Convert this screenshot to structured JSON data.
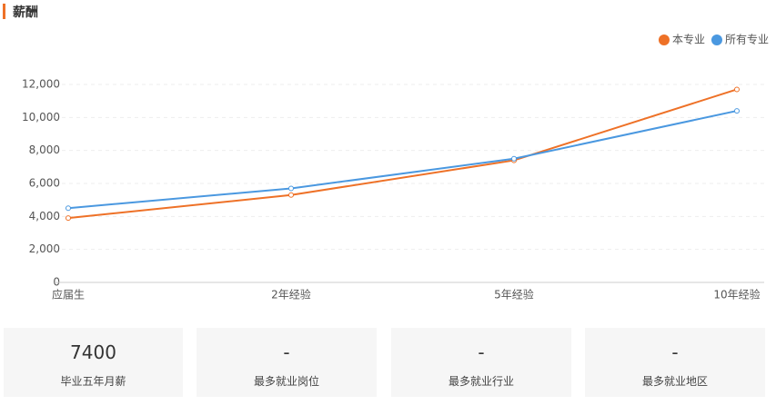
{
  "header": {
    "title": "薪酬"
  },
  "chart_data": {
    "type": "line",
    "categories": [
      "应届生",
      "2年经验",
      "5年经验",
      "10年经验"
    ],
    "series": [
      {
        "name": "本专业",
        "color": "#ee7127",
        "values": [
          3900,
          5300,
          7400,
          11700
        ]
      },
      {
        "name": "所有专业",
        "color": "#4a98e0",
        "values": [
          4500,
          5700,
          7500,
          10400
        ]
      }
    ],
    "ylim": [
      0,
      12000
    ],
    "yticks": [
      0,
      {
        "value": 2000,
        "label": "2,000"
      },
      {
        "value": 4000,
        "label": "4,000"
      },
      {
        "value": 6000,
        "label": "6,000"
      },
      {
        "value": 8000,
        "label": "8,000"
      },
      {
        "value": 10000,
        "label": "10,000"
      },
      {
        "value": 12000,
        "label": "12,000"
      }
    ],
    "grid": true,
    "legend": "top-right"
  },
  "cards": [
    {
      "value": 7400,
      "label": "毕业五年月薪"
    },
    {
      "value": "-",
      "label": "最多就业岗位"
    },
    {
      "value": "-",
      "label": "最多就业行业"
    },
    {
      "value": "-",
      "label": "最多就业地区"
    }
  ]
}
